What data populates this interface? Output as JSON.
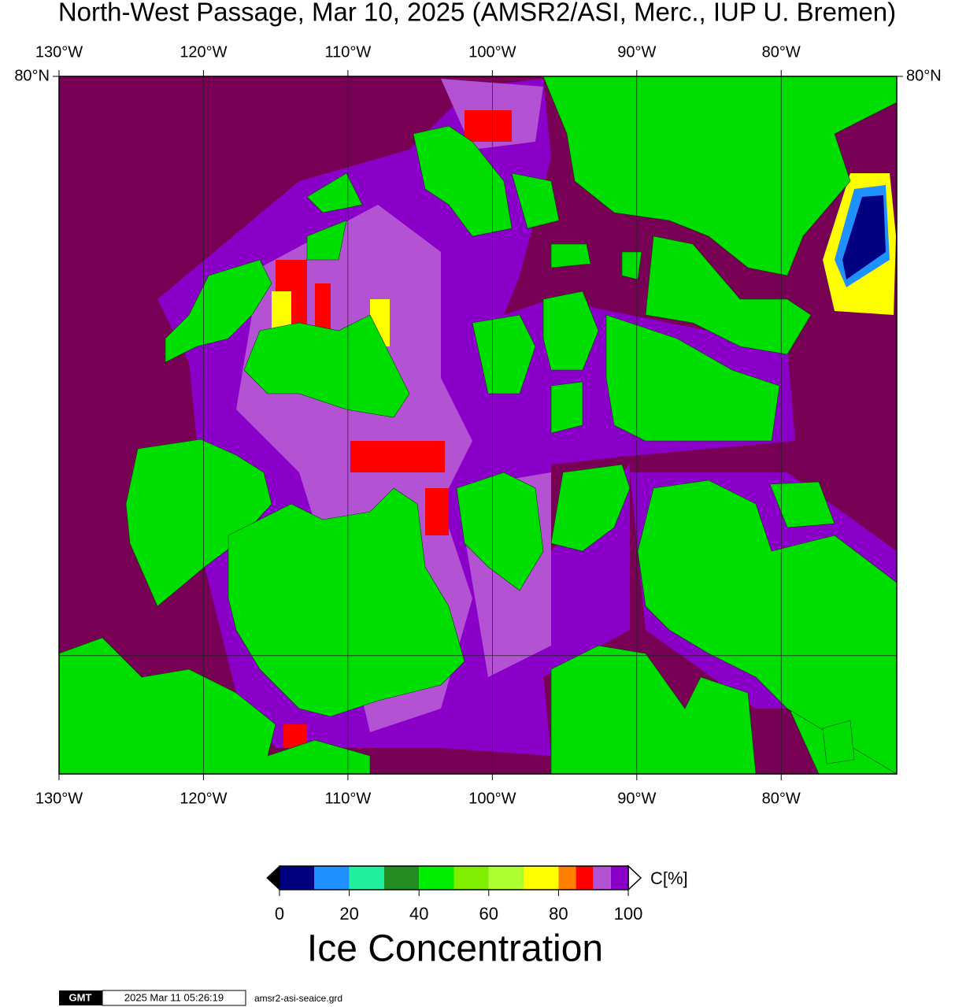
{
  "title": "North-West Passage, Mar 10, 2025 (AMSR2/ASI, Merc., IUP U. Bremen)",
  "map": {
    "lonlim": [
      -130,
      -72
    ],
    "latlim": [
      67,
      80
    ],
    "lon_ticks": [
      {
        "value": -130,
        "label": "130°W"
      },
      {
        "value": -120,
        "label": "120°W"
      },
      {
        "value": -110,
        "label": "110°W"
      },
      {
        "value": -100,
        "label": "100°W"
      },
      {
        "value": -90,
        "label": "90°W"
      },
      {
        "value": -80,
        "label": "80°W"
      }
    ],
    "lat_ticks": [
      {
        "value": 80,
        "label": "80°N"
      }
    ],
    "lat_grid": [
      70
    ],
    "ocean_color": "#770055",
    "land_color": "#00dd00"
  },
  "colorbar": {
    "bounds": [
      0,
      10,
      20,
      30,
      40,
      50,
      60,
      70,
      80,
      85,
      90,
      95,
      100
    ],
    "colors": [
      "#000080",
      "#1e90ff",
      "#20f0a0",
      "#228b22",
      "#00ee00",
      "#7fee00",
      "#adff2f",
      "#ffff00",
      "#ff7f00",
      "#ff0000",
      "#b452d4",
      "#8a00c8"
    ],
    "ticks": [
      0,
      20,
      40,
      60,
      80,
      100
    ],
    "unit": "C[%]",
    "label": "Ice Concentration"
  },
  "footer": {
    "logo": "GMT",
    "timestamp": "2025 Mar 11 05:26:19",
    "file": "amsr2-asi-seaice.grd"
  }
}
